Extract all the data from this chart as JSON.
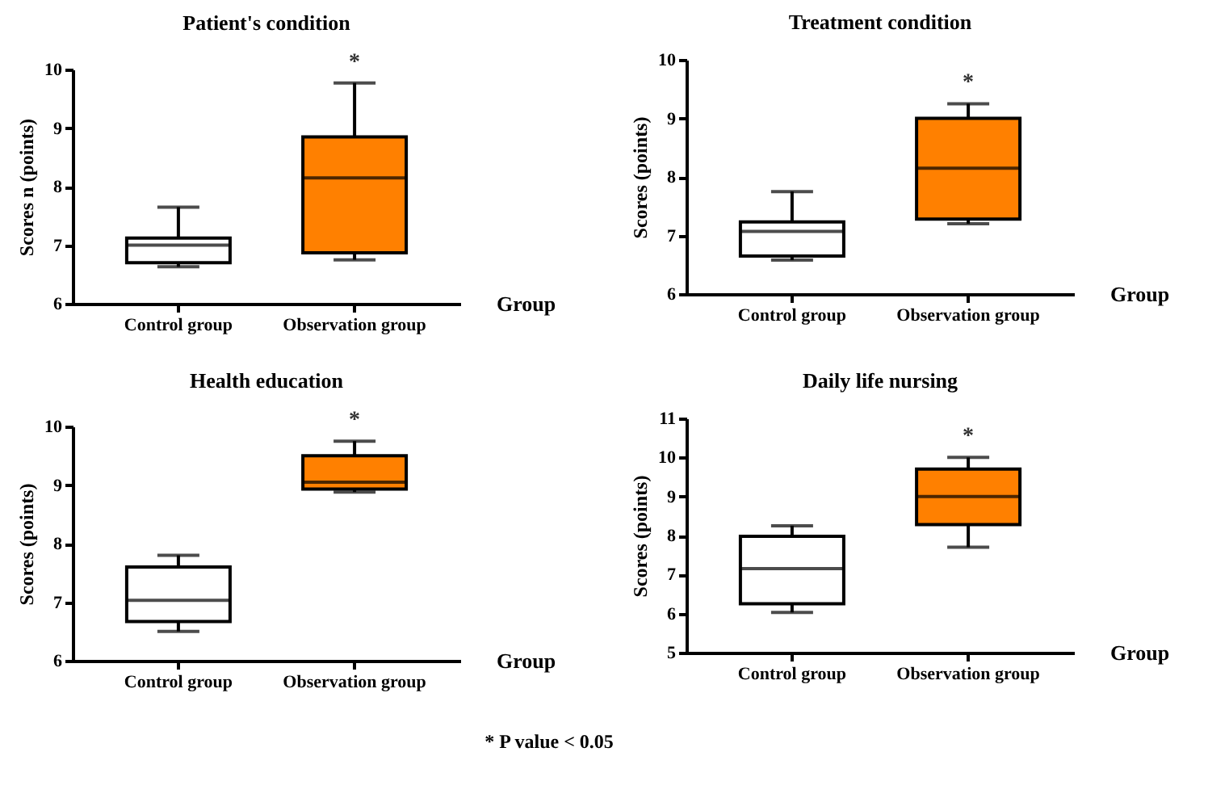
{
  "chart_data": [
    {
      "type": "box",
      "title": "Patient's condition",
      "xlabel": "Group",
      "ylabel": "Scores n (points)",
      "categories": [
        "Control group",
        "Observation group"
      ],
      "colors": [
        "#ffffff",
        "#ff8000"
      ],
      "ylim": [
        6,
        10
      ],
      "yticks": [
        6,
        7,
        8,
        9,
        10
      ],
      "boxes": [
        {
          "low": 6.63,
          "q1": 6.7,
          "median": 7.0,
          "q3": 7.12,
          "high": 7.65
        },
        {
          "low": 6.75,
          "q1": 6.87,
          "median": 8.15,
          "q3": 8.85,
          "high": 9.77
        }
      ],
      "annotations": [
        {
          "text": "*",
          "x": "Observation group",
          "y": 9.77
        }
      ]
    },
    {
      "type": "box",
      "title": "Treatment condition",
      "xlabel": "Group",
      "ylabel": "Scores (points)",
      "categories": [
        "Control group",
        "Observation group"
      ],
      "colors": [
        "#ffffff",
        "#ff8000"
      ],
      "ylim": [
        6,
        10
      ],
      "yticks": [
        6,
        7,
        8,
        9,
        10
      ],
      "boxes": [
        {
          "low": 6.58,
          "q1": 6.65,
          "median": 7.07,
          "q3": 7.23,
          "high": 7.75
        },
        {
          "low": 7.2,
          "q1": 7.28,
          "median": 8.15,
          "q3": 9.0,
          "high": 9.25
        }
      ],
      "annotations": [
        {
          "text": "*",
          "x": "Observation group",
          "y": 9.25
        }
      ]
    },
    {
      "type": "box",
      "title": "Health education",
      "xlabel": "Group",
      "ylabel": "Scores (points)",
      "categories": [
        "Control group",
        "Observation group"
      ],
      "colors": [
        "#ffffff",
        "#ff8000"
      ],
      "ylim": [
        6,
        10
      ],
      "yticks": [
        6,
        7,
        8,
        9,
        10
      ],
      "boxes": [
        {
          "low": 6.5,
          "q1": 6.67,
          "median": 7.03,
          "q3": 7.6,
          "high": 7.8
        },
        {
          "low": 8.88,
          "q1": 8.93,
          "median": 9.05,
          "q3": 9.5,
          "high": 9.75
        }
      ],
      "annotations": [
        {
          "text": "*",
          "x": "Observation group",
          "y": 9.75
        }
      ]
    },
    {
      "type": "box",
      "title": "Daily life nursing",
      "xlabel": "Group",
      "ylabel": "Scores (points)",
      "categories": [
        "Control group",
        "Observation group"
      ],
      "colors": [
        "#ffffff",
        "#ff8000"
      ],
      "ylim": [
        5,
        11
      ],
      "yticks": [
        5,
        6,
        7,
        8,
        9,
        10,
        11
      ],
      "boxes": [
        {
          "low": 6.03,
          "q1": 6.25,
          "median": 7.15,
          "q3": 7.98,
          "high": 8.25
        },
        {
          "low": 7.7,
          "q1": 8.28,
          "median": 9.0,
          "q3": 9.7,
          "high": 10.0
        }
      ],
      "annotations": [
        {
          "text": "*",
          "x": "Observation group",
          "y": 10.0
        },
        "* P value < 0.05"
      ]
    }
  ]
}
